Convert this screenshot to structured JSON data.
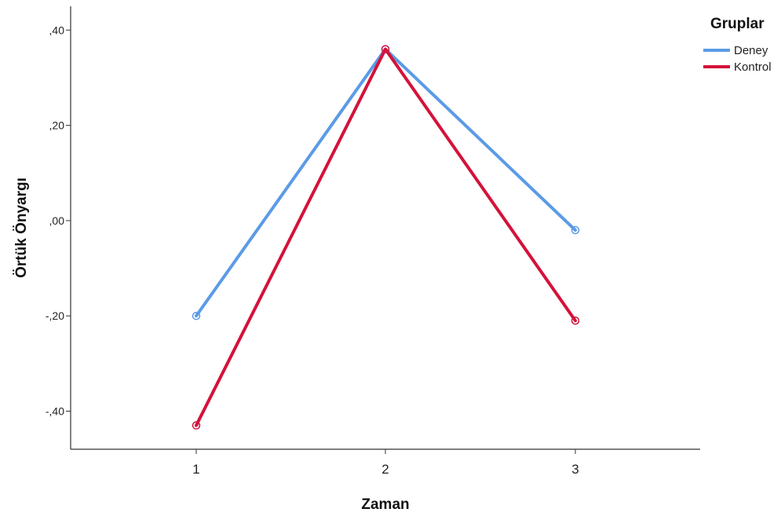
{
  "chart_data": {
    "type": "line",
    "x": [
      "1",
      "2",
      "3"
    ],
    "xlabel": "Zaman",
    "ylabel": "Örtük Önyargı",
    "ylim": [
      -0.48,
      0.45
    ],
    "yticks": [
      ",40",
      ",20",
      ",00",
      "-,20",
      "-,40"
    ],
    "ytick_values": [
      0.4,
      0.2,
      0.0,
      -0.2,
      -0.4
    ],
    "grid": false,
    "legend": {
      "title": "Gruplar",
      "placement": "top-right"
    },
    "series": [
      {
        "name": "Deney",
        "color": "#5b9be6",
        "values": [
          -0.2,
          0.36,
          -0.02
        ]
      },
      {
        "name": "Kontrol",
        "color": "#d4123a",
        "values": [
          -0.43,
          0.36,
          -0.21
        ]
      }
    ]
  }
}
